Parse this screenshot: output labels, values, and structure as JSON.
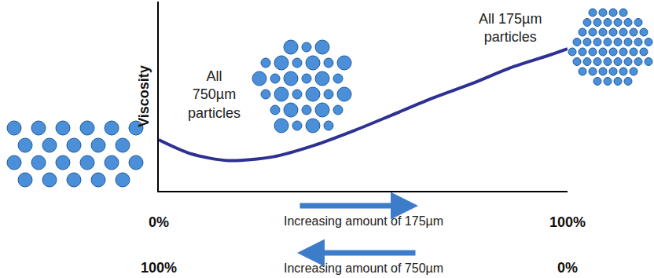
{
  "chart_data": {
    "type": "line",
    "ylabel": "Viscosity",
    "xlabel": "Increasing amount of 175µm",
    "x": [
      0,
      8,
      17,
      28,
      38,
      48,
      57,
      67,
      77,
      86,
      96,
      100
    ],
    "values": [
      27,
      19.5,
      16,
      18,
      24,
      32,
      40,
      49,
      57,
      65,
      72,
      75
    ],
    "color": "#2e3192",
    "xlim": [
      0,
      100
    ],
    "xticks": [
      {
        "value": 0,
        "label": "0%"
      },
      {
        "value": 100,
        "label": "100%"
      }
    ],
    "ylim": [
      0,
      100
    ],
    "yticks": [],
    "tick_labels": "x",
    "grid": false,
    "secondary_x": {
      "label": "Increasing amount of 750µm",
      "ticks": [
        {
          "value": 0,
          "label": "100%"
        },
        {
          "value": 100,
          "label": "0%"
        }
      ]
    },
    "annotations": [
      {
        "text": [
          "All",
          "750µm",
          "particles"
        ],
        "x": 13.5,
        "y": 51
      },
      {
        "text": [
          "All 175µm",
          "particles"
        ],
        "x": 86,
        "y": 86
      }
    ]
  }
}
